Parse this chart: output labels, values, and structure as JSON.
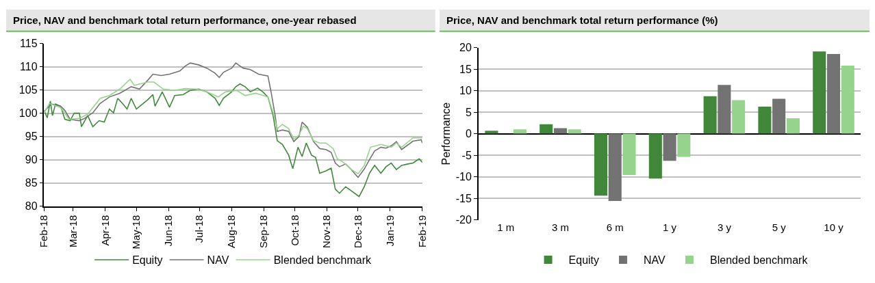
{
  "chart_data": [
    {
      "type": "line",
      "title": "Price, NAV and benchmark total return performance, one-year rebased",
      "xlim": [
        "2018-02-01",
        "2019-02-01"
      ],
      "xticks": [
        {
          "value": "2018-02-01",
          "label": "Feb-18"
        },
        {
          "value": "2018-03-01",
          "label": "Mar-18"
        },
        {
          "value": "2018-04-01",
          "label": "Apr-18"
        },
        {
          "value": "2018-05-01",
          "label": "May-18"
        },
        {
          "value": "2018-06-01",
          "label": "Jun-18"
        },
        {
          "value": "2018-07-01",
          "label": "Jul-18"
        },
        {
          "value": "2018-08-01",
          "label": "Aug-18"
        },
        {
          "value": "2018-09-01",
          "label": "Sep-18"
        },
        {
          "value": "2018-10-01",
          "label": "Oct-18"
        },
        {
          "value": "2018-11-01",
          "label": "Nov-18"
        },
        {
          "value": "2018-12-01",
          "label": "Dec-18"
        },
        {
          "value": "2019-01-01",
          "label": "Jan-19"
        },
        {
          "value": "2019-02-01",
          "label": "Feb-19"
        }
      ],
      "ylim": [
        80,
        115
      ],
      "yticks": [
        80,
        85,
        90,
        95,
        100,
        105,
        110,
        115
      ],
      "grid": "y",
      "legend": "bottom",
      "line_style": "solid",
      "series": [
        {
          "name": "Equity",
          "color": "#41873a",
          "x": [
            "2018-02-01",
            "2018-02-04",
            "2018-02-07",
            "2018-02-09",
            "2018-02-12",
            "2018-02-17",
            "2018-02-21",
            "2018-02-26",
            "2018-03-02",
            "2018-03-07",
            "2018-03-09",
            "2018-03-15",
            "2018-03-20",
            "2018-03-26",
            "2018-03-31",
            "2018-04-05",
            "2018-04-09",
            "2018-04-13",
            "2018-04-18",
            "2018-04-22",
            "2018-04-26",
            "2018-05-01",
            "2018-05-06",
            "2018-05-12",
            "2018-05-17",
            "2018-05-19",
            "2018-05-26",
            "2018-06-02",
            "2018-06-07",
            "2018-06-15",
            "2018-06-22",
            "2018-06-30",
            "2018-07-08",
            "2018-07-16",
            "2018-07-20",
            "2018-07-24",
            "2018-08-01",
            "2018-08-05",
            "2018-08-09",
            "2018-08-14",
            "2018-08-19",
            "2018-08-26",
            "2018-08-31",
            "2018-09-05",
            "2018-09-10",
            "2018-09-14",
            "2018-09-19",
            "2018-09-25",
            "2018-09-29",
            "2018-10-04",
            "2018-10-08",
            "2018-10-12",
            "2018-10-17",
            "2018-10-21",
            "2018-10-25",
            "2018-10-31",
            "2018-11-05",
            "2018-11-09",
            "2018-11-13",
            "2018-11-19",
            "2018-11-24",
            "2018-12-02",
            "2018-12-07",
            "2018-12-12",
            "2018-12-17",
            "2018-12-23",
            "2018-12-28",
            "2019-01-02",
            "2019-01-07",
            "2019-01-12",
            "2019-01-18",
            "2019-01-23",
            "2019-01-29",
            "2019-02-01"
          ],
          "values": [
            100.6,
            99.0,
            102.6,
            99.5,
            102,
            101.5,
            98.7,
            98.4,
            100,
            100,
            97.1,
            99.5,
            97.1,
            98.4,
            98.1,
            100.9,
            100.1,
            103.2,
            102,
            100.9,
            103.2,
            100.9,
            101.8,
            102.9,
            104,
            101.5,
            104.6,
            101.3,
            103.8,
            104,
            104.9,
            105.2,
            104.6,
            103.2,
            101.7,
            103.2,
            104.6,
            105.7,
            106.3,
            105.7,
            104.6,
            105.4,
            104.6,
            103.5,
            99.5,
            94.1,
            93.3,
            91,
            88.1,
            92.7,
            90.7,
            93.6,
            91,
            90.5,
            87.1,
            87.6,
            88.2,
            83.7,
            82.8,
            84.2,
            83.4,
            82.1,
            84.2,
            87.1,
            88.8,
            87.1,
            88.5,
            89.3,
            87.9,
            88.8,
            89.1,
            89.3,
            90.2,
            89.4
          ]
        },
        {
          "name": "NAV",
          "color": "#727272",
          "x": [
            "2018-02-01",
            "2018-02-08",
            "2018-02-17",
            "2018-02-21",
            "2018-02-26",
            "2018-03-07",
            "2018-03-12",
            "2018-03-20",
            "2018-03-27",
            "2018-04-05",
            "2018-04-15",
            "2018-04-26",
            "2018-05-04",
            "2018-05-12",
            "2018-05-17",
            "2018-05-25",
            "2018-06-02",
            "2018-06-12",
            "2018-06-17",
            "2018-06-22",
            "2018-06-30",
            "2018-07-08",
            "2018-07-16",
            "2018-07-20",
            "2018-07-24",
            "2018-08-01",
            "2018-08-05",
            "2018-08-12",
            "2018-08-19",
            "2018-08-27",
            "2018-09-05",
            "2018-09-08",
            "2018-09-12",
            "2018-09-14",
            "2018-09-19",
            "2018-09-25",
            "2018-09-30",
            "2018-10-05",
            "2018-10-08",
            "2018-10-13",
            "2018-10-19",
            "2018-10-25",
            "2018-10-31",
            "2018-11-05",
            "2018-11-09",
            "2018-11-13",
            "2018-11-19",
            "2018-11-24",
            "2018-12-01",
            "2018-12-07",
            "2018-12-12",
            "2018-12-17",
            "2018-12-23",
            "2018-12-28",
            "2019-01-02",
            "2019-01-07",
            "2019-01-12",
            "2019-01-23",
            "2019-01-31",
            "2019-02-01"
          ],
          "values": [
            100.4,
            102,
            101.5,
            100.6,
            98.7,
            98.4,
            98.9,
            100.1,
            102.1,
            103.5,
            104.3,
            105.7,
            105.2,
            107.1,
            108.4,
            108.1,
            108.4,
            109.1,
            110.1,
            110.8,
            110.4,
            109.7,
            108.6,
            107.7,
            108.8,
            109.7,
            110.8,
            109.7,
            109.4,
            108.4,
            108,
            104.6,
            99.5,
            96.1,
            96.4,
            96.1,
            93.9,
            95,
            98.1,
            97,
            93.9,
            92.4,
            92.2,
            91.6,
            89.3,
            88.5,
            89.1,
            88,
            86.2,
            88,
            90,
            91.9,
            92.7,
            92.5,
            93,
            93.9,
            92.2,
            94,
            94.3,
            93.6
          ]
        },
        {
          "name": "Blended benchmark",
          "color": "#96d38c",
          "x": [
            "2018-02-01",
            "2018-02-06",
            "2018-02-17",
            "2018-02-25",
            "2018-03-07",
            "2018-03-15",
            "2018-03-20",
            "2018-03-27",
            "2018-04-05",
            "2018-04-15",
            "2018-04-25",
            "2018-04-29",
            "2018-05-12",
            "2018-05-18",
            "2018-05-27",
            "2018-06-07",
            "2018-06-17",
            "2018-06-28",
            "2018-07-08",
            "2018-07-19",
            "2018-07-26",
            "2018-08-06",
            "2018-08-14",
            "2018-08-24",
            "2018-09-05",
            "2018-09-10",
            "2018-09-14",
            "2018-09-19",
            "2018-09-25",
            "2018-09-30",
            "2018-10-05",
            "2018-10-09",
            "2018-10-13",
            "2018-10-19",
            "2018-10-25",
            "2018-10-31",
            "2018-11-07",
            "2018-11-11",
            "2018-11-16",
            "2018-11-24",
            "2018-12-01",
            "2018-12-07",
            "2018-12-13",
            "2018-12-23",
            "2019-01-02",
            "2019-01-07",
            "2019-01-12",
            "2019-01-23",
            "2019-02-01"
          ],
          "values": [
            100.1,
            102.1,
            101.2,
            98.7,
            98.9,
            99.8,
            101.2,
            103.2,
            103.8,
            105.2,
            107.3,
            106,
            106.7,
            106.7,
            105.2,
            104.9,
            105.3,
            105.2,
            104.6,
            103.5,
            104.6,
            104.9,
            103.8,
            104.3,
            103.5,
            100.1,
            96.7,
            97.6,
            96.7,
            94.4,
            95.3,
            97.2,
            96.7,
            94.1,
            93.6,
            93.6,
            92.4,
            90.2,
            89.6,
            88,
            87,
            88.8,
            92.7,
            93.3,
            92.7,
            93.6,
            92.7,
            94.7,
            94.7
          ]
        }
      ]
    },
    {
      "type": "bar",
      "title": "Price, NAV and benchmark total return performance (%)",
      "ylabel": "Performance",
      "categories": [
        "1 m",
        "3 m",
        "6 m",
        "1 y",
        "3 y",
        "5 y",
        "10 y"
      ],
      "ylim": [
        -20,
        20
      ],
      "yticks": [
        -20,
        -15,
        -10,
        -5,
        0,
        5,
        10,
        15,
        20
      ],
      "grid": "y",
      "legend": "bottom",
      "series": [
        {
          "name": "Equity",
          "color": "#41873a",
          "values": [
            0.7,
            2.2,
            -14.4,
            -10.4,
            8.7,
            6.3,
            19.1
          ]
        },
        {
          "name": "NAV",
          "color": "#727272",
          "values": [
            0,
            1.3,
            -15.6,
            -6.3,
            11.3,
            8.1,
            18.5
          ]
        },
        {
          "name": "Blended benchmark",
          "color": "#96d38c",
          "values": [
            1.0,
            1.0,
            -9.6,
            -5.4,
            7.8,
            3.6,
            15.8
          ]
        }
      ]
    }
  ]
}
